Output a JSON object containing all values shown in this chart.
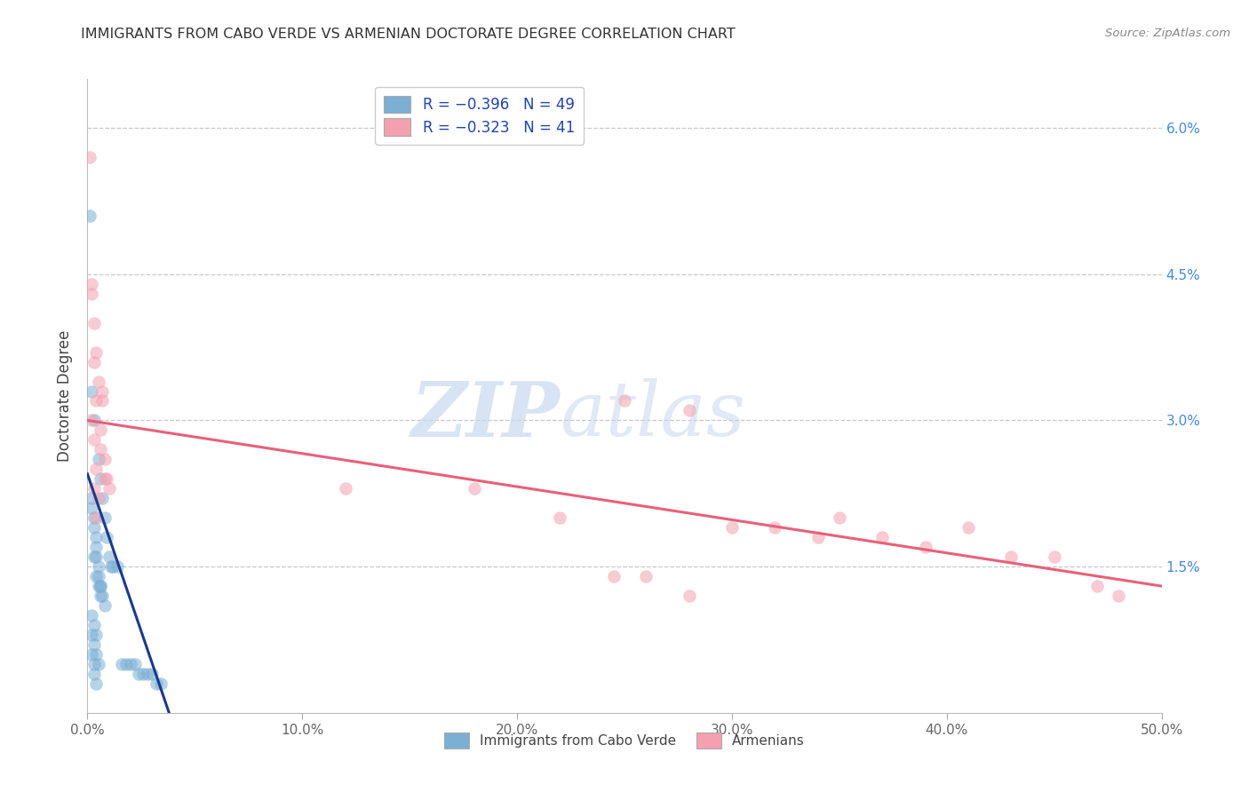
{
  "title": "IMMIGRANTS FROM CABO VERDE VS ARMENIAN DOCTORATE DEGREE CORRELATION CHART",
  "source": "Source: ZipAtlas.com",
  "ylabel": "Doctorate Degree",
  "x_min": 0.0,
  "x_max": 0.5,
  "y_min": 0.0,
  "y_max": 0.065,
  "x_ticks": [
    0.0,
    0.1,
    0.2,
    0.3,
    0.4,
    0.5
  ],
  "x_tick_labels": [
    "0.0%",
    "10.0%",
    "20.0%",
    "30.0%",
    "40.0%",
    "50.0%"
  ],
  "y_ticks": [
    0.0,
    0.015,
    0.03,
    0.045,
    0.06
  ],
  "color_blue": "#7BAFD4",
  "color_pink": "#F4A0B0",
  "line_blue": "#1A3A8C",
  "line_pink": "#E8607A",
  "watermark_zip": "ZIP",
  "watermark_atlas": "atlas",
  "blue_x": [
    0.002,
    0.003,
    0.005,
    0.006,
    0.007,
    0.008,
    0.009,
    0.01,
    0.011,
    0.002,
    0.003,
    0.004,
    0.005,
    0.006,
    0.007,
    0.008,
    0.003,
    0.004,
    0.005,
    0.006,
    0.002,
    0.003,
    0.004,
    0.002,
    0.003,
    0.004,
    0.005,
    0.002,
    0.003,
    0.003,
    0.004,
    0.012,
    0.014,
    0.016,
    0.018,
    0.002,
    0.003,
    0.004,
    0.004,
    0.005,
    0.006,
    0.02,
    0.022,
    0.024,
    0.026,
    0.028,
    0.03,
    0.032,
    0.034,
    0.001
  ],
  "blue_y": [
    0.033,
    0.03,
    0.026,
    0.024,
    0.022,
    0.02,
    0.018,
    0.016,
    0.015,
    0.021,
    0.019,
    0.017,
    0.015,
    0.013,
    0.012,
    0.011,
    0.016,
    0.014,
    0.013,
    0.012,
    0.01,
    0.009,
    0.008,
    0.008,
    0.007,
    0.006,
    0.005,
    0.006,
    0.005,
    0.004,
    0.003,
    0.015,
    0.015,
    0.005,
    0.005,
    0.022,
    0.02,
    0.018,
    0.016,
    0.014,
    0.013,
    0.005,
    0.005,
    0.004,
    0.004,
    0.004,
    0.004,
    0.003,
    0.003,
    0.051
  ],
  "pink_x": [
    0.001,
    0.002,
    0.003,
    0.004,
    0.005,
    0.006,
    0.007,
    0.008,
    0.009,
    0.01,
    0.002,
    0.003,
    0.004,
    0.005,
    0.006,
    0.007,
    0.008,
    0.003,
    0.004,
    0.25,
    0.28,
    0.3,
    0.32,
    0.34,
    0.35,
    0.37,
    0.39,
    0.41,
    0.43,
    0.45,
    0.47,
    0.12,
    0.18,
    0.22,
    0.245,
    0.26,
    0.28,
    0.48,
    0.002,
    0.003,
    0.004
  ],
  "pink_y": [
    0.057,
    0.044,
    0.04,
    0.037,
    0.034,
    0.029,
    0.033,
    0.026,
    0.024,
    0.023,
    0.03,
    0.028,
    0.025,
    0.022,
    0.027,
    0.032,
    0.024,
    0.023,
    0.02,
    0.032,
    0.031,
    0.019,
    0.019,
    0.018,
    0.02,
    0.018,
    0.017,
    0.019,
    0.016,
    0.016,
    0.013,
    0.023,
    0.023,
    0.02,
    0.014,
    0.014,
    0.012,
    0.012,
    0.043,
    0.036,
    0.032
  ],
  "blue_line_x": [
    0.0,
    0.038
  ],
  "blue_line_y": [
    0.0245,
    0.0
  ],
  "pink_line_x": [
    0.0,
    0.5
  ],
  "pink_line_y": [
    0.03,
    0.013
  ]
}
